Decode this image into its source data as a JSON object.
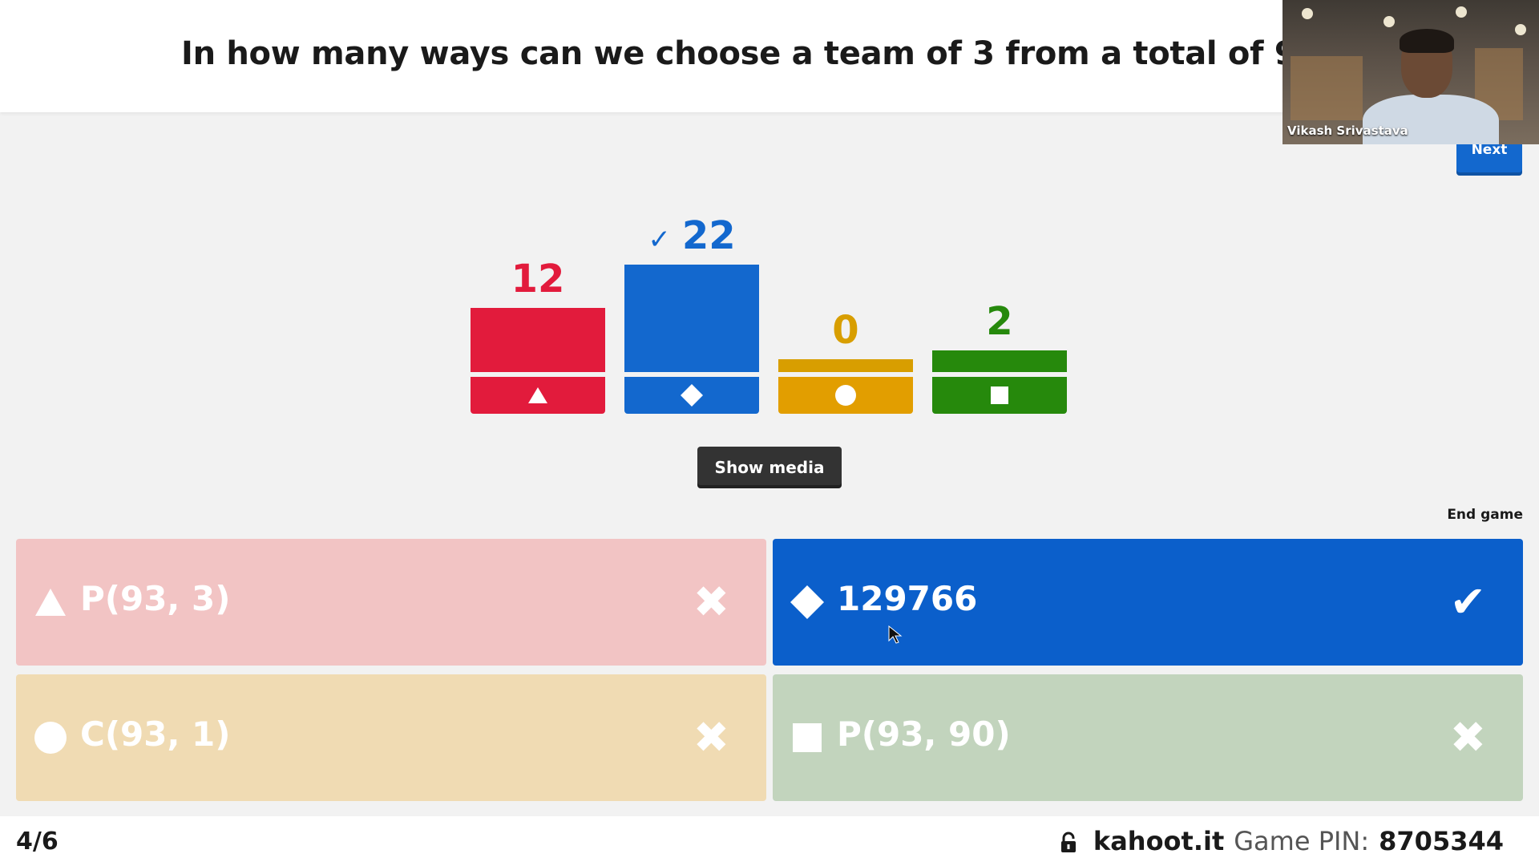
{
  "question": {
    "text": "In how many ways can we choose a team of 3 from a total of 93 pers"
  },
  "webcam": {
    "participant_name": "Vikash Srivastava"
  },
  "controls": {
    "next_label": "Next",
    "show_media_label": "Show media",
    "end_game_label": "End game"
  },
  "results": [
    {
      "count": "12",
      "color": "#e21b3c",
      "base_color": "#e21b3c",
      "shape": "triangle-icon",
      "correct": false,
      "check": ""
    },
    {
      "count": "22",
      "color": "#1368ce",
      "base_color": "#1368ce",
      "shape": "diamond-icon",
      "correct": true,
      "check": "✓"
    },
    {
      "count": "0",
      "color": "#d89e00",
      "base_color": "#e29e00",
      "shape": "circle-icon",
      "correct": false,
      "check": ""
    },
    {
      "count": "2",
      "color": "#26890c",
      "base_color": "#26890c",
      "shape": "square-icon",
      "correct": false,
      "check": ""
    }
  ],
  "answers": [
    {
      "text": "P(93, 3)",
      "shape": "triangle-icon",
      "correct": false,
      "result_icon": "cross-icon",
      "color": "#f2c4c4"
    },
    {
      "text": "129766",
      "shape": "diamond-icon",
      "correct": true,
      "result_icon": "check-icon",
      "color": "#0b5fcb"
    },
    {
      "text": "C(93, 1)",
      "shape": "circle-icon",
      "correct": false,
      "result_icon": "cross-icon",
      "color": "#f0dbb3"
    },
    {
      "text": "P(93, 90)",
      "shape": "square-icon",
      "correct": false,
      "result_icon": "cross-icon",
      "color": "#c2d4bd"
    }
  ],
  "footer": {
    "counter": "4/6",
    "url": "kahoot.it",
    "pin_label": "Game PIN:",
    "pin_value": "8705344"
  }
}
